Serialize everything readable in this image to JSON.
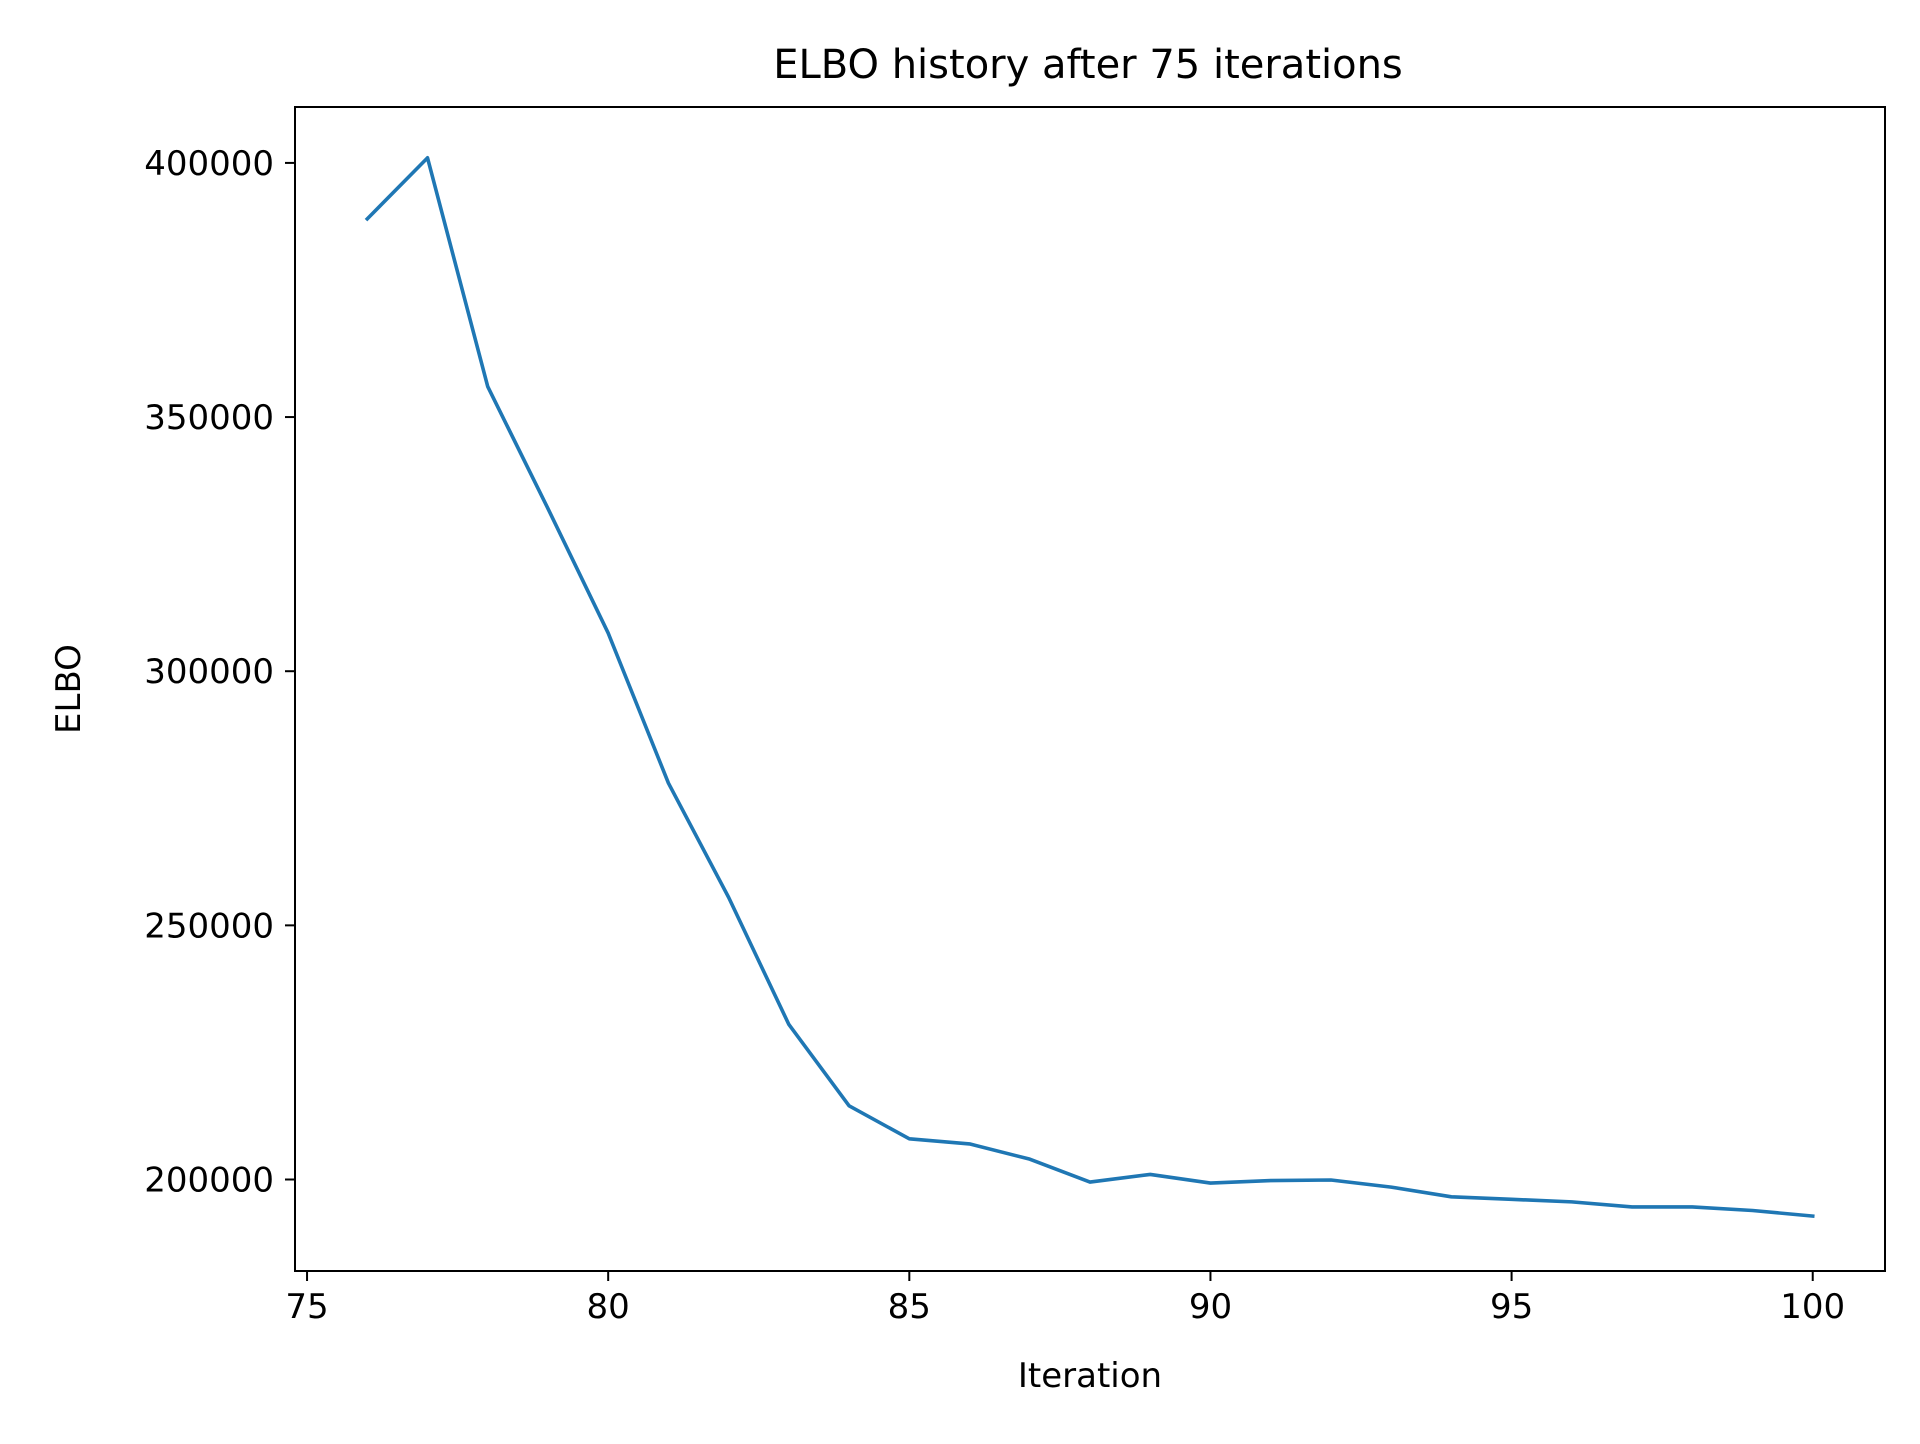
{
  "chart_data": {
    "type": "line",
    "title": "ELBO history after 75 iterations",
    "xlabel": "Iteration",
    "ylabel": "ELBO",
    "xlim": [
      74.8,
      101.2
    ],
    "ylim": [
      182000,
      411000
    ],
    "xticks": [
      75,
      80,
      85,
      90,
      95,
      100
    ],
    "yticks": [
      200000,
      250000,
      300000,
      350000,
      400000
    ],
    "grid": false,
    "legend": "none",
    "line_color": "#1f77b4",
    "series": [
      {
        "x": [
          76,
          77,
          78,
          79,
          80,
          81,
          82,
          83,
          84,
          85,
          86,
          87,
          88,
          89,
          90,
          91,
          92,
          93,
          94,
          95,
          96,
          97,
          98,
          99,
          100
        ],
        "values": [
          389000,
          401000,
          356000,
          332000,
          307500,
          278000,
          255500,
          230500,
          214500,
          208000,
          207000,
          204000,
          199500,
          201000,
          199300,
          199800,
          199900,
          198500,
          196600,
          196100,
          195600,
          194600,
          194600,
          193900,
          192800
        ]
      }
    ]
  }
}
